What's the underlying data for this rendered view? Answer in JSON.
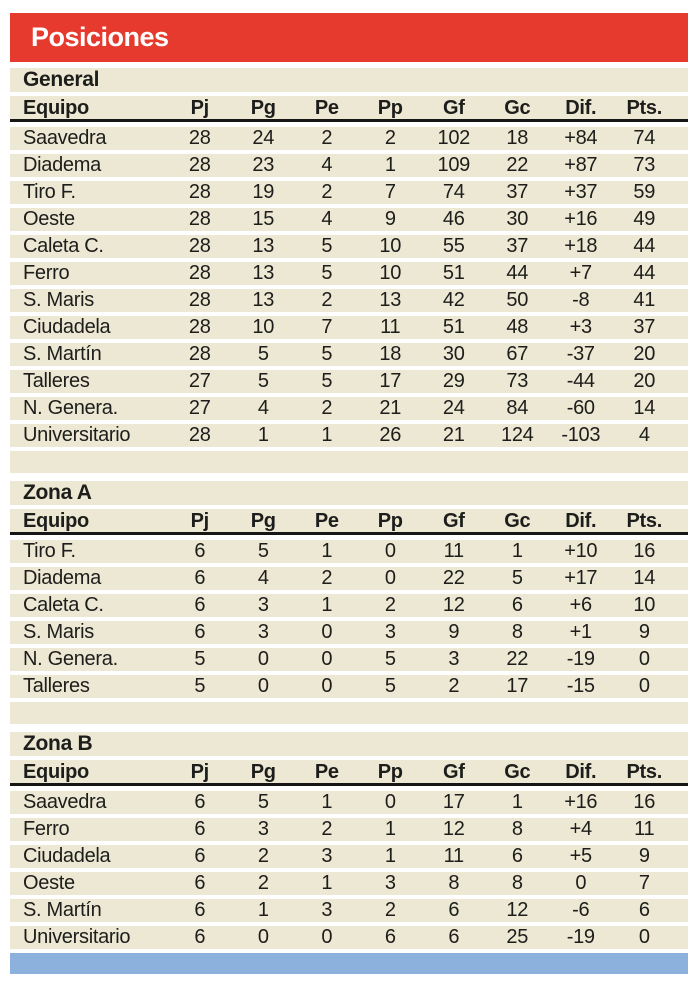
{
  "title_bar": {
    "title": "Posiciones"
  },
  "colors": {
    "red": "#e63a2e",
    "cream": "#ece8d3",
    "blue": "#8db1dd",
    "text": "#1d1d1b"
  },
  "table": {
    "columns": [
      "Equipo",
      "Pj",
      "Pg",
      "Pe",
      "Pp",
      "Gf",
      "Gc",
      "Dif.",
      "Pts."
    ],
    "sections": [
      {
        "label": "General",
        "rows": [
          [
            "Saavedra",
            "28",
            "24",
            "2",
            "2",
            "102",
            "18",
            "+84",
            "74"
          ],
          [
            "Diadema",
            "28",
            "23",
            "4",
            "1",
            "109",
            "22",
            "+87",
            "73"
          ],
          [
            "Tiro F.",
            "28",
            "19",
            "2",
            "7",
            "74",
            "37",
            "+37",
            "59"
          ],
          [
            "Oeste",
            "28",
            "15",
            "4",
            "9",
            "46",
            "30",
            "+16",
            "49"
          ],
          [
            "Caleta C.",
            "28",
            "13",
            "5",
            "10",
            "55",
            "37",
            "+18",
            "44"
          ],
          [
            "Ferro",
            "28",
            "13",
            "5",
            "10",
            "51",
            "44",
            "+7",
            "44"
          ],
          [
            "S. Maris",
            "28",
            "13",
            "2",
            "13",
            "42",
            "50",
            "-8",
            "41"
          ],
          [
            "Ciudadela",
            "28",
            "10",
            "7",
            "11",
            "51",
            "48",
            "+3",
            "37"
          ],
          [
            "S. Martín",
            "28",
            "5",
            "5",
            "18",
            "30",
            "67",
            "-37",
            "20"
          ],
          [
            "Talleres",
            "27",
            "5",
            "5",
            "17",
            "29",
            "73",
            "-44",
            "20"
          ],
          [
            "N. Genera.",
            "27",
            "4",
            "2",
            "21",
            "24",
            "84",
            "-60",
            "14"
          ],
          [
            "Universitario",
            "28",
            "1",
            "1",
            "26",
            "21",
            "124",
            "-103",
            "4"
          ]
        ]
      },
      {
        "label": "Zona A",
        "rows": [
          [
            "Tiro F.",
            "6",
            "5",
            "1",
            "0",
            "11",
            "1",
            "+10",
            "16"
          ],
          [
            "Diadema",
            "6",
            "4",
            "2",
            "0",
            "22",
            "5",
            "+17",
            "14"
          ],
          [
            "Caleta C.",
            "6",
            "3",
            "1",
            "2",
            "12",
            "6",
            "+6",
            "10"
          ],
          [
            "S. Maris",
            "6",
            "3",
            "0",
            "3",
            "9",
            "8",
            "+1",
            "9"
          ],
          [
            "N. Genera.",
            "5",
            "0",
            "0",
            "5",
            "3",
            "22",
            "-19",
            "0"
          ],
          [
            "Talleres",
            "5",
            "0",
            "0",
            "5",
            "2",
            "17",
            "-15",
            "0"
          ]
        ]
      },
      {
        "label": "Zona B",
        "rows": [
          [
            "Saavedra",
            "6",
            "5",
            "1",
            "0",
            "17",
            "1",
            "+16",
            "16"
          ],
          [
            "Ferro",
            "6",
            "3",
            "2",
            "1",
            "12",
            "8",
            "+4",
            "11"
          ],
          [
            "Ciudadela",
            "6",
            "2",
            "3",
            "1",
            "11",
            "6",
            "+5",
            "9"
          ],
          [
            "Oeste",
            "6",
            "2",
            "1",
            "3",
            "8",
            "8",
            "0",
            "7"
          ],
          [
            "S. Martín",
            "6",
            "1",
            "3",
            "2",
            "6",
            "12",
            "-6",
            "6"
          ],
          [
            "Universitario",
            "6",
            "0",
            "0",
            "6",
            "6",
            "25",
            "-19",
            "0"
          ]
        ]
      }
    ]
  }
}
